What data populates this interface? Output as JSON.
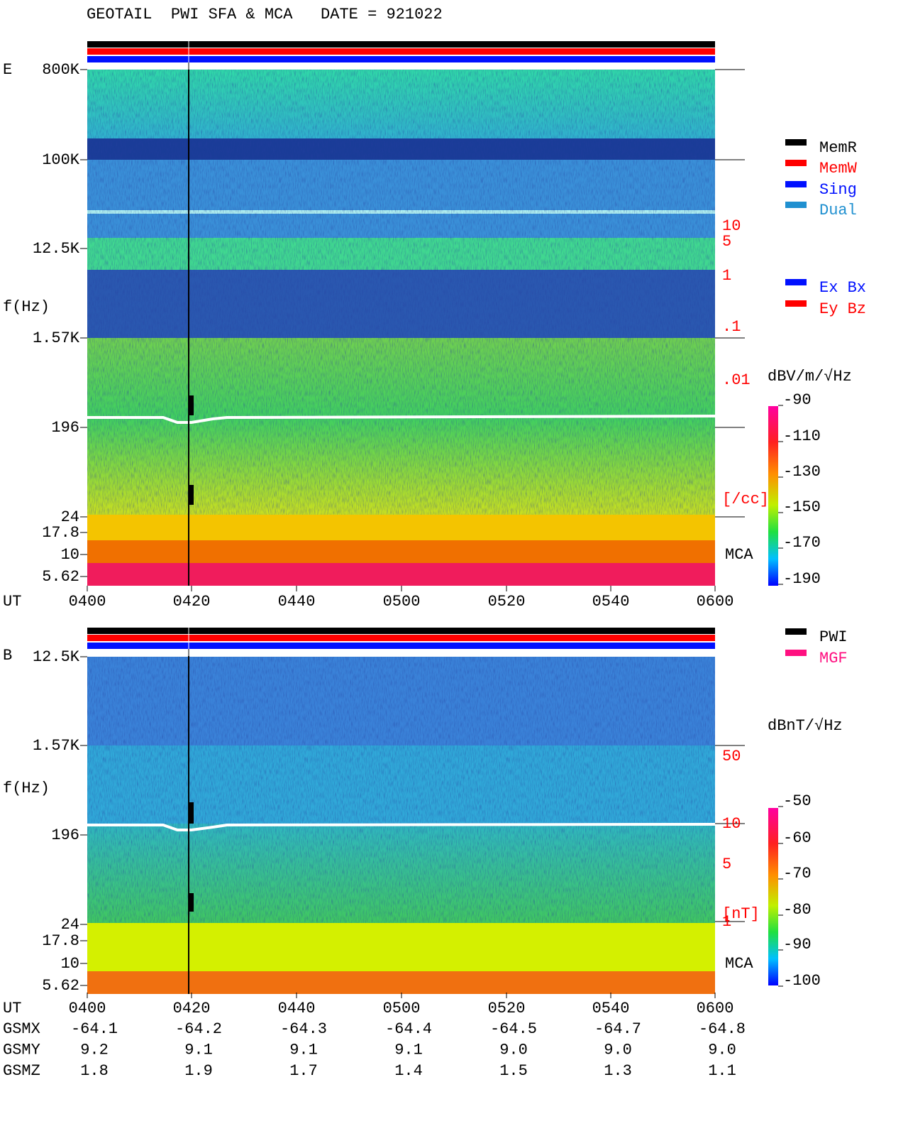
{
  "header": {
    "title": "GEOTAIL  PWI SFA & MCA   DATE = 921022"
  },
  "panels": [
    {
      "label": "E",
      "ylabel": "f(Hz)",
      "yticks": [
        "800K",
        "100K",
        "12.5K",
        "1.57K",
        "196",
        "24",
        "17.8",
        "10",
        "5.62"
      ],
      "right_labels": [
        "10",
        "5",
        "1",
        ".1",
        ".01",
        "[/cc]"
      ],
      "mca": "MCA",
      "time_label": "UT",
      "times": [
        "0400",
        "0420",
        "0440",
        "0500",
        "0520",
        "0540",
        "0600"
      ],
      "colorbar": {
        "label": "dBV/m/√Hz",
        "ticks": [
          "-90",
          "-110",
          "-130",
          "-150",
          "-170",
          "-190"
        ]
      },
      "legend": [
        {
          "name": "MemR",
          "color": "#000000"
        },
        {
          "name": "MemW",
          "color": "#ff0000"
        },
        {
          "name": "Sing",
          "color": "#0010ff"
        },
        {
          "name": "Dual",
          "color": "#2090d0"
        },
        {
          "name": "Ex Bx",
          "color": "#0010ff"
        },
        {
          "name": "Ey Bz",
          "color": "#ff0000"
        }
      ]
    },
    {
      "label": "B",
      "ylabel": "f(Hz)",
      "yticks": [
        "12.5K",
        "1.57K",
        "196",
        "24",
        "17.8",
        "10",
        "5.62"
      ],
      "right_labels": [
        "50",
        "10",
        "5",
        "1",
        "[nT]"
      ],
      "mca": "MCA",
      "time_label": "UT",
      "times": [
        "0400",
        "0420",
        "0440",
        "0500",
        "0520",
        "0540",
        "0600"
      ],
      "colorbar": {
        "label": "dBnT/√Hz",
        "ticks": [
          "-50",
          "-60",
          "-70",
          "-80",
          "-90",
          "-100"
        ]
      },
      "legend": [
        {
          "name": "PWI",
          "color": "#000000"
        },
        {
          "name": "MGF",
          "color": "#ff1080"
        }
      ]
    }
  ],
  "orbit": {
    "rows": [
      {
        "name": "GSMX",
        "values": [
          "-64.1",
          "-64.2",
          "-64.3",
          "-64.4",
          "-64.5",
          "-64.7",
          "-64.8"
        ]
      },
      {
        "name": "GSMY",
        "values": [
          "9.2",
          "9.1",
          "9.1",
          "9.1",
          "9.0",
          "9.0",
          "9.0"
        ]
      },
      {
        "name": "GSMZ",
        "values": [
          "1.8",
          "1.9",
          "1.7",
          "1.4",
          "1.5",
          "1.3",
          "1.1"
        ]
      }
    ]
  }
}
